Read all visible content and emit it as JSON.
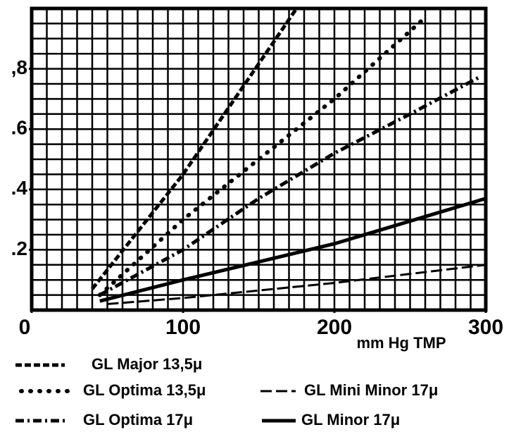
{
  "chart_data": {
    "type": "line",
    "x_label": "mm Hg TMP",
    "xlim": [
      0,
      300
    ],
    "xticks": [
      0,
      100,
      200,
      300
    ],
    "ylim": [
      0,
      1
    ],
    "yticks": [
      {
        "value": 0.2,
        "label": ".2"
      },
      {
        "value": 0.4,
        "label": ".4"
      },
      {
        "value": 0.6,
        "label": ".6"
      },
      {
        "value": 0.8,
        "label": ",8"
      }
    ],
    "grid": {
      "x_step": 10,
      "y_step": 0.05
    },
    "series": [
      {
        "name": "GL Major 13,5μ",
        "color": "#000000",
        "style": "dashed",
        "x": [
          40,
          100,
          175
        ],
        "values": [
          0.07,
          0.45,
          1.0
        ]
      },
      {
        "name": "GL Optima 13,5μ",
        "color": "#000000",
        "style": "dotted",
        "x": [
          45,
          100,
          150,
          200,
          260
        ],
        "values": [
          0.05,
          0.3,
          0.5,
          0.7,
          0.97
        ]
      },
      {
        "name": "GL Mini Minor 17μ",
        "color": "#000000",
        "style": "thin-dashed",
        "x": [
          50,
          100,
          200,
          300
        ],
        "values": [
          0.02,
          0.04,
          0.09,
          0.15
        ]
      },
      {
        "name": "GL Optima 17μ",
        "color": "#000000",
        "style": "dash-dot",
        "x": [
          45,
          100,
          150,
          200,
          250,
          295
        ],
        "values": [
          0.05,
          0.2,
          0.37,
          0.52,
          0.65,
          0.77
        ]
      },
      {
        "name": "GL Minor 17μ",
        "color": "#000000",
        "style": "solid",
        "x": [
          45,
          100,
          200,
          300
        ],
        "values": [
          0.03,
          0.1,
          0.22,
          0.37
        ]
      }
    ]
  }
}
